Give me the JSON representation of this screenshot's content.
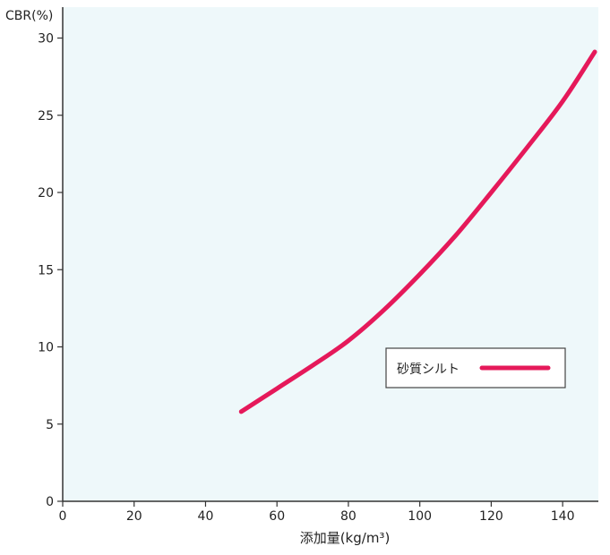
{
  "chart_data": {
    "type": "line",
    "title": "",
    "xlabel": "添加量(kg/m³)",
    "ylabel": "CBR(%)",
    "xlim": [
      0,
      150
    ],
    "ylim": [
      0,
      32
    ],
    "x_ticks": [
      0,
      20,
      40,
      60,
      80,
      100,
      120,
      140
    ],
    "y_ticks": [
      0,
      5,
      10,
      15,
      20,
      25,
      30
    ],
    "grid": false,
    "legend": "right-center",
    "series": [
      {
        "name": "砂質シルト",
        "color": "#e5195a",
        "x": [
          50,
          60,
          70,
          80,
          90,
          100,
          110,
          120,
          130,
          140,
          149
        ],
        "y": [
          5.8,
          7.3,
          8.8,
          10.4,
          12.4,
          14.7,
          17.2,
          20.0,
          22.9,
          25.9,
          29.1
        ]
      }
    ]
  },
  "colors": {
    "plot_background": "#eef8fa",
    "axis": "#333333",
    "series_line": "#e5195a"
  }
}
